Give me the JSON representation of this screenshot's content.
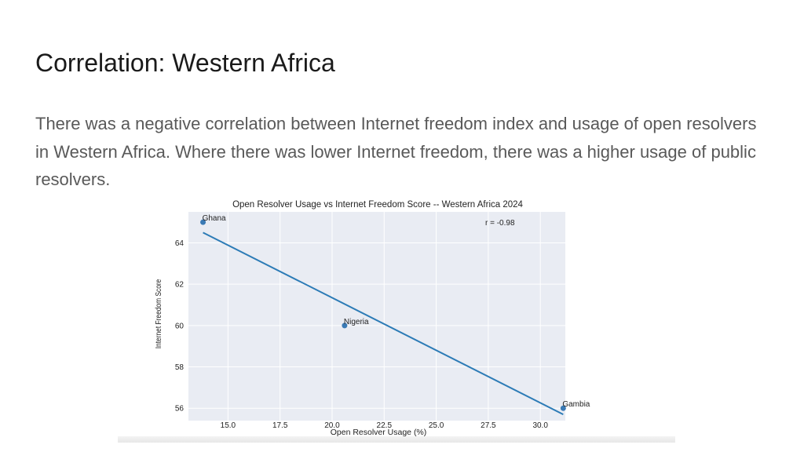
{
  "slide": {
    "title": "Correlation: Western Africa",
    "body": "There was a negative correlation between Internet freedom index and usage of open resolvers in Western Africa. Where there was lower Internet freedom, there was a higher usage of public resolvers."
  },
  "chart_data": {
    "type": "scatter",
    "title": "Open Resolver Usage vs Internet Freedom Score -- Western Africa 2024",
    "xlabel": "Open Resolver Usage (%)",
    "ylabel": "Internet Freedom Score",
    "annotation": "r = -0.98",
    "xlim": [
      13.1,
      31.2
    ],
    "ylim": [
      55.4,
      65.5
    ],
    "xticks": [
      15.0,
      17.5,
      20.0,
      22.5,
      25.0,
      27.5,
      30.0
    ],
    "xtick_labels": [
      "15.0",
      "17.5",
      "20.0",
      "22.5",
      "25.0",
      "27.5",
      "30.0"
    ],
    "yticks": [
      56,
      58,
      60,
      62,
      64
    ],
    "ytick_labels": [
      "56",
      "58",
      "60",
      "62",
      "64"
    ],
    "grid": true,
    "points": [
      {
        "label": "Ghana",
        "x": 13.8,
        "y": 65
      },
      {
        "label": "Nigeria",
        "x": 20.6,
        "y": 60
      },
      {
        "label": "Gambia",
        "x": 31.1,
        "y": 56
      }
    ],
    "trendline": {
      "x": [
        13.8,
        31.1
      ],
      "y": [
        64.5,
        55.7
      ]
    },
    "colors": {
      "plot_background": "#e9ecf3",
      "grid": "#ffffff",
      "point": "#3a7ab5",
      "line": "#2c7bb6",
      "text": "#222222"
    }
  }
}
